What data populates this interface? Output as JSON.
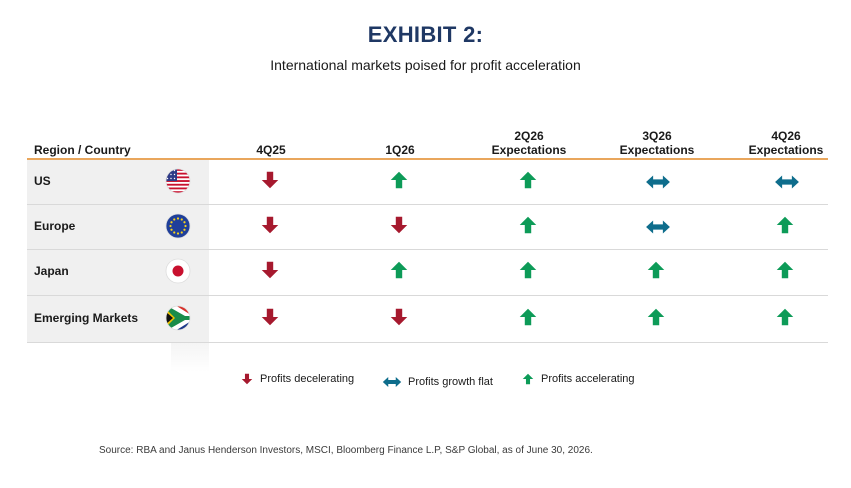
{
  "title": "EXHIBIT 2:",
  "subtitle": "International markets poised for profit acceleration",
  "colors": {
    "decelerating": "#a6192e",
    "flat": "#0e6d8c",
    "accelerating": "#0d9b58",
    "title": "#1f3864",
    "header_rule": "#e9a65c"
  },
  "chart_data": {
    "type": "table",
    "columns": [
      "Region / Country",
      "4Q25",
      "1Q26",
      "2Q26\nExpectations",
      "3Q26\nExpectations",
      "4Q26\nExpectations"
    ],
    "rows": [
      {
        "region": "US",
        "flag_icon": "us-flag-icon",
        "values": [
          "decelerating",
          "accelerating",
          "accelerating",
          "flat",
          "flat"
        ]
      },
      {
        "region": "Europe",
        "flag_icon": "eu-flag-icon",
        "values": [
          "decelerating",
          "decelerating",
          "accelerating",
          "flat",
          "accelerating"
        ]
      },
      {
        "region": "Japan",
        "flag_icon": "japan-flag-icon",
        "values": [
          "decelerating",
          "accelerating",
          "accelerating",
          "accelerating",
          "accelerating"
        ]
      },
      {
        "region": "Emerging Markets",
        "flag_icon": "south-africa-flag-icon",
        "values": [
          "decelerating",
          "decelerating",
          "accelerating",
          "accelerating",
          "accelerating"
        ]
      }
    ],
    "legend": [
      {
        "key": "decelerating",
        "label": "Profits decelerating"
      },
      {
        "key": "flat",
        "label": "Profits growth flat"
      },
      {
        "key": "accelerating",
        "label": "Profits accelerating"
      }
    ]
  },
  "source": "Source: RBA and Janus Henderson Investors, MSCI, Bloomberg Finance L.P, S&P Global, as of June 30, 2026."
}
